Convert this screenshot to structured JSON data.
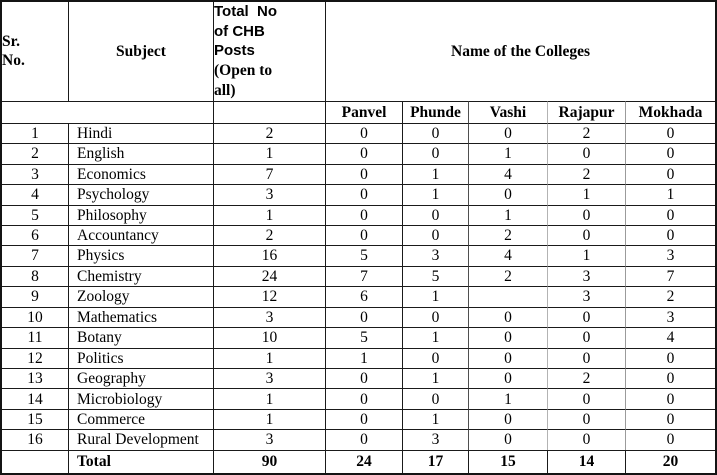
{
  "document": {
    "table": {
      "headers": {
        "sr_no": "Sr.\nNo.",
        "subject": "Subject",
        "total_posts_main": "Total  No\nof CHB\nPosts",
        "total_posts_sub": "(Open to\nall)",
        "colleges_group": "Name of the Colleges",
        "colleges": [
          "Panvel",
          "Phunde",
          "Vashi",
          "Rajapur",
          "Mokhada"
        ]
      },
      "rows": [
        {
          "sr": "1",
          "subject": "Hindi",
          "total": "2",
          "values": [
            "0",
            "0",
            "0",
            "2",
            "0"
          ]
        },
        {
          "sr": "2",
          "subject": "English",
          "total": "1",
          "values": [
            "0",
            "0",
            "1",
            "0",
            "0"
          ]
        },
        {
          "sr": "3",
          "subject": "Economics",
          "total": "7",
          "values": [
            "0",
            "1",
            "4",
            "2",
            "0"
          ]
        },
        {
          "sr": "4",
          "subject": "Psychology",
          "total": "3",
          "values": [
            "0",
            "1",
            "0",
            "1",
            "1"
          ]
        },
        {
          "sr": "5",
          "subject": "Philosophy",
          "total": "1",
          "values": [
            "0",
            "0",
            "1",
            "0",
            "0"
          ]
        },
        {
          "sr": "6",
          "subject": "Accountancy",
          "total": "2",
          "values": [
            "0",
            "0",
            "2",
            "0",
            "0"
          ]
        },
        {
          "sr": "7",
          "subject": "Physics",
          "total": "16",
          "values": [
            "5",
            "3",
            "4",
            "1",
            "3"
          ]
        },
        {
          "sr": "8",
          "subject": "Chemistry",
          "total": "24",
          "values": [
            "7",
            "5",
            "2",
            "3",
            "7"
          ]
        },
        {
          "sr": "9",
          "subject": "Zoology",
          "total": "12",
          "values": [
            "6",
            "1",
            "",
            "3",
            "2"
          ]
        },
        {
          "sr": "10",
          "subject": "Mathematics",
          "total": "3",
          "values": [
            "0",
            "0",
            "0",
            "0",
            "3"
          ]
        },
        {
          "sr": "11",
          "subject": "Botany",
          "total": "10",
          "values": [
            "5",
            "1",
            "0",
            "0",
            "4"
          ]
        },
        {
          "sr": "12",
          "subject": "Politics",
          "total": "1",
          "values": [
            "1",
            "0",
            "0",
            "0",
            "0"
          ]
        },
        {
          "sr": "13",
          "subject": "Geography",
          "total": "3",
          "values": [
            "0",
            "1",
            "0",
            "2",
            "0"
          ]
        },
        {
          "sr": "14",
          "subject": "Microbiology",
          "total": "1",
          "values": [
            "0",
            "0",
            "1",
            "0",
            "0"
          ]
        },
        {
          "sr": "15",
          "subject": "Commerce",
          "total": "1",
          "values": [
            "0",
            "1",
            "0",
            "0",
            "0"
          ]
        },
        {
          "sr": "16",
          "subject": "Rural Development",
          "total": "3",
          "values": [
            "0",
            "3",
            "0",
            "0",
            "0"
          ]
        }
      ],
      "total_row": {
        "label": "Total",
        "total": "90",
        "values": [
          "24",
          "17",
          "15",
          "14",
          "20"
        ]
      }
    }
  }
}
